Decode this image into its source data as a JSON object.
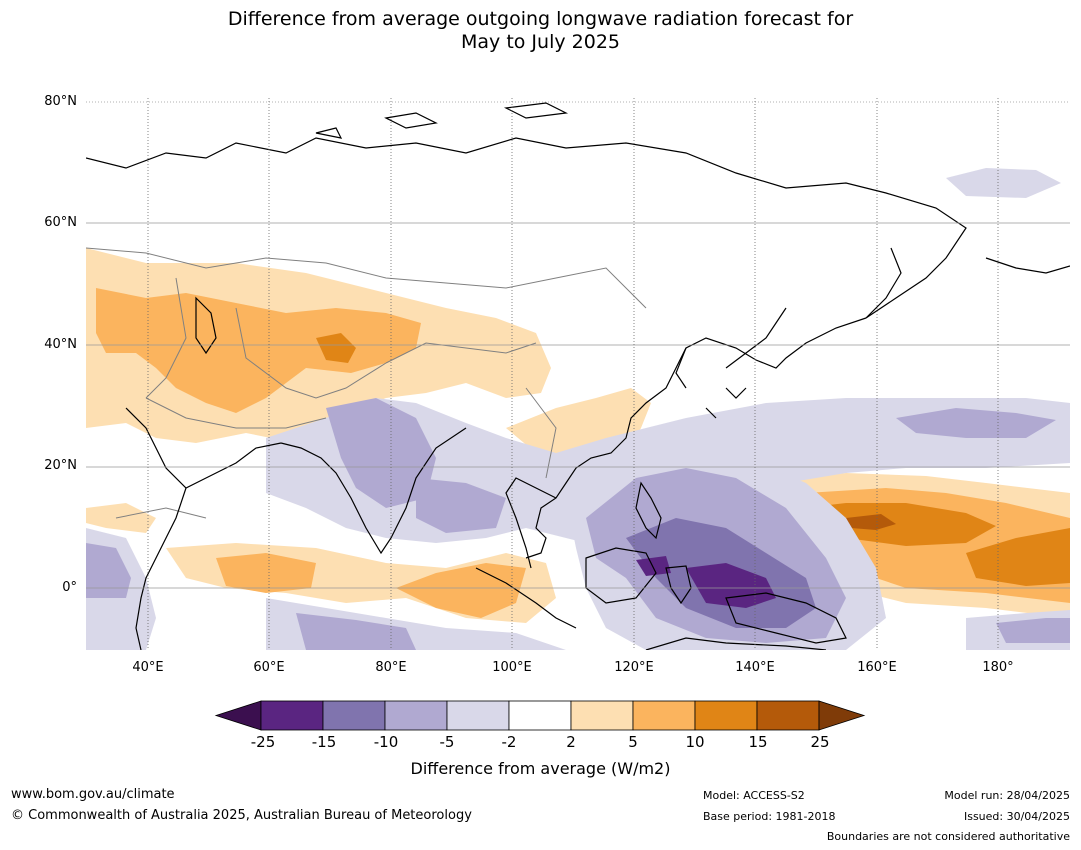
{
  "title": {
    "line1": "Difference from average outgoing longwave radiation forecast for",
    "line2": "May to July 2025"
  },
  "map": {
    "lat_labels": [
      "80°N",
      "60°N",
      "40°N",
      "20°N",
      "0°"
    ],
    "lon_labels": [
      "40°E",
      "60°E",
      "80°E",
      "100°E",
      "120°E",
      "140°E",
      "160°E",
      "180°"
    ]
  },
  "colorbar": {
    "ticks": [
      "-25",
      "-15",
      "-10",
      "-5",
      "-2",
      "2",
      "5",
      "10",
      "15",
      "25"
    ],
    "colors": [
      "#3b0f4f",
      "#5a2581",
      "#8074ae",
      "#b0a9d1",
      "#d9d8e9",
      "#ffffff",
      "#fddfb2",
      "#fbb45e",
      "#e08516",
      "#b45a0a",
      "#7f3b08"
    ],
    "label": "Difference from average (W/m2)"
  },
  "footer": {
    "url": "www.bom.gov.au/climate",
    "copyright": "© Commonwealth of Australia 2025, Australian Bureau of Meteorology",
    "model": "Model: ACCESS-S2",
    "base_period": "Base period: 1981-2018",
    "model_run": "Model run: 28/04/2025",
    "issued": "Issued: 30/04/2025",
    "boundaries": "Boundaries are not considered authoritative"
  }
}
